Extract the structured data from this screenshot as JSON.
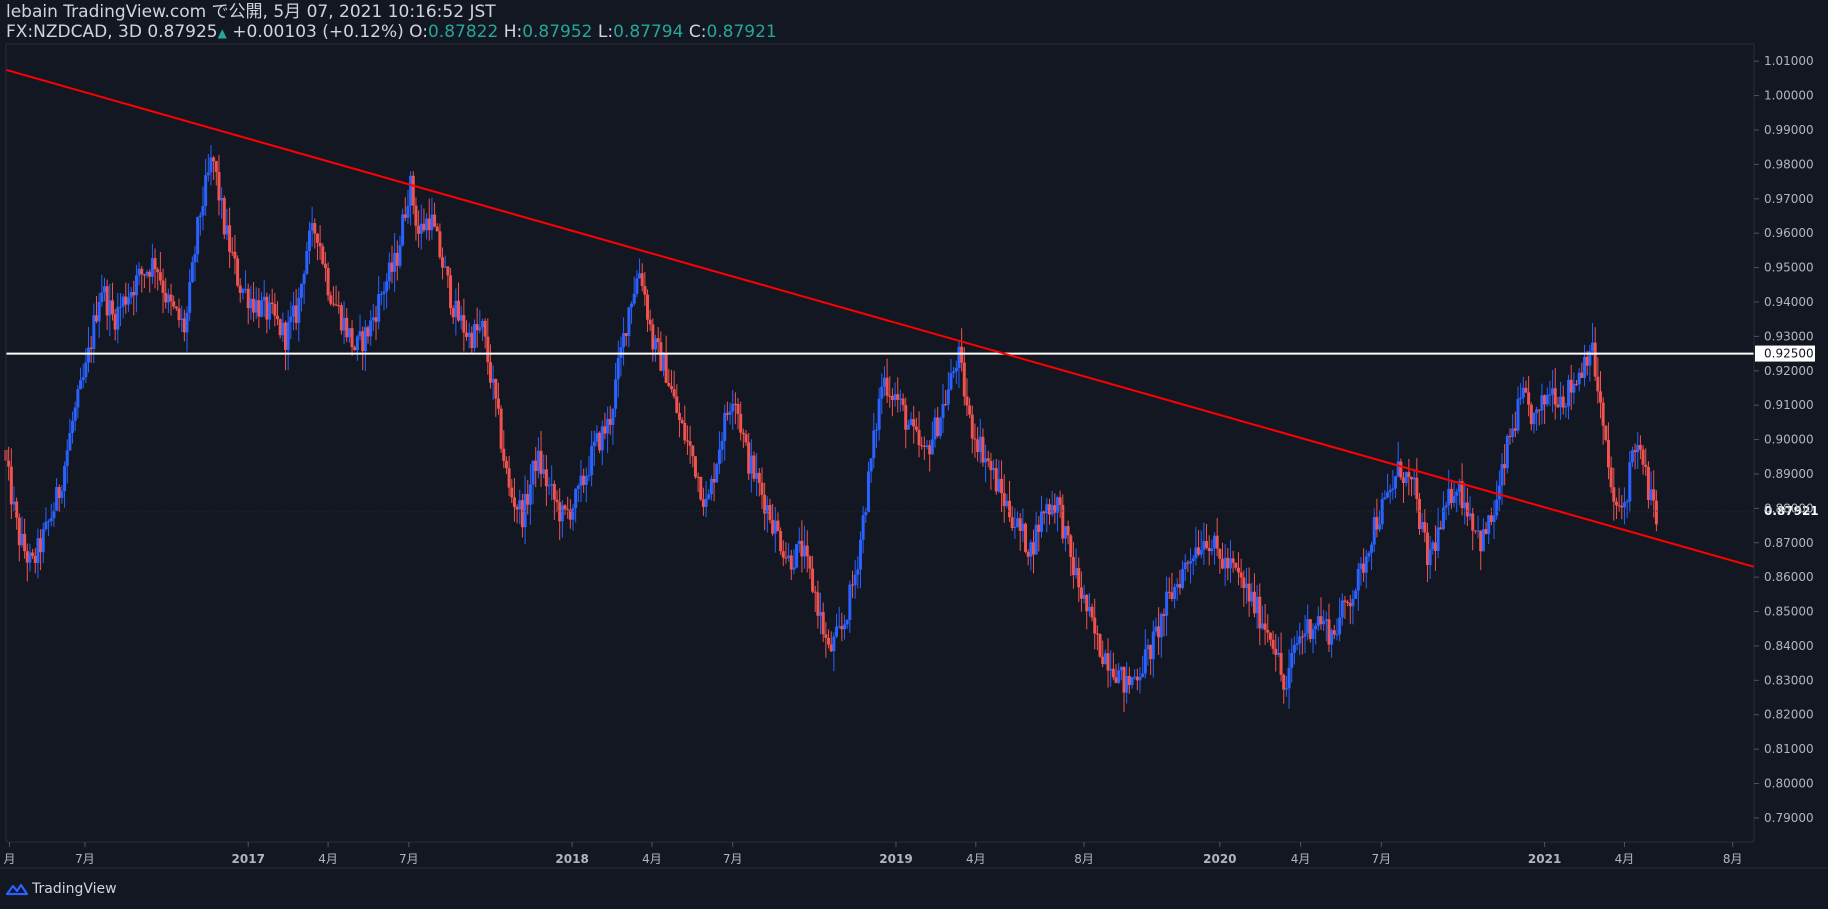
{
  "header": {
    "published": "lebain TradingView.com で公開, 5月 07, 2021 10:16:52 JST",
    "symbol": "FX:NZDCAD, 3D",
    "price": "0.87925",
    "change_arrow": "▲",
    "change": "+0.00103 (+0.12%)",
    "o_label": "O:",
    "o_value": "0.87822",
    "h_label": "H:",
    "h_value": "0.87952",
    "l_label": "L:",
    "l_value": "0.87794",
    "c_label": "C:",
    "c_value": "0.87921"
  },
  "brand": {
    "name": "TradingView",
    "icon": "tradingview-logo-icon"
  },
  "colors": {
    "background": "#131722",
    "up": "#2962ff",
    "down": "#ef5350",
    "trendline": "#ff0000",
    "level_line": "#ffffff",
    "axis_text": "#b2b5be",
    "grid_line": "#2a2e39"
  },
  "chart_data": {
    "type": "candlestick",
    "symbol": "FX:NZDCAD",
    "interval": "3D",
    "ylim": [
      0.783,
      1.015
    ],
    "y_ticks": [
      "0.79000",
      "0.80000",
      "0.81000",
      "0.82000",
      "0.83000",
      "0.84000",
      "0.85000",
      "0.86000",
      "0.87000",
      "0.88000",
      "0.89000",
      "0.90000",
      "0.91000",
      "0.92000",
      "0.93000",
      "0.94000",
      "0.95000",
      "0.96000",
      "0.97000",
      "0.98000",
      "0.99000",
      "1.00000",
      "1.01000"
    ],
    "y_tick_values": [
      0.79,
      0.8,
      0.81,
      0.82,
      0.83,
      0.84,
      0.85,
      0.86,
      0.87,
      0.88,
      0.89,
      0.9,
      0.91,
      0.92,
      0.93,
      0.94,
      0.95,
      0.96,
      0.97,
      0.98,
      0.99,
      1.0,
      1.01
    ],
    "x_range": [
      "2016-04-03",
      "2021-08-25"
    ],
    "x_ticks": [
      {
        "label": "月",
        "date": "2016-04-07",
        "bold": false
      },
      {
        "label": "7月",
        "date": "2016-07-01",
        "bold": false
      },
      {
        "label": "2017",
        "date": "2017-01-01",
        "bold": true
      },
      {
        "label": "4月",
        "date": "2017-04-01",
        "bold": false
      },
      {
        "label": "7月",
        "date": "2017-07-01",
        "bold": false
      },
      {
        "label": "2018",
        "date": "2018-01-01",
        "bold": true
      },
      {
        "label": "4月",
        "date": "2018-04-01",
        "bold": false
      },
      {
        "label": "7月",
        "date": "2018-07-01",
        "bold": false
      },
      {
        "label": "2019",
        "date": "2019-01-01",
        "bold": true
      },
      {
        "label": "4月",
        "date": "2019-04-01",
        "bold": false
      },
      {
        "label": "8月",
        "date": "2019-08-01",
        "bold": false
      },
      {
        "label": "2020",
        "date": "2020-01-01",
        "bold": true
      },
      {
        "label": "4月",
        "date": "2020-04-01",
        "bold": false
      },
      {
        "label": "7月",
        "date": "2020-07-01",
        "bold": false
      },
      {
        "label": "2021",
        "date": "2021-01-01",
        "bold": true
      },
      {
        "label": "4月",
        "date": "2021-04-01",
        "bold": false
      },
      {
        "label": "8月",
        "date": "2021-08-01",
        "bold": false
      }
    ],
    "horizontal_level": {
      "value": 0.925,
      "label": "0.92500"
    },
    "last_price": {
      "value": 0.87921,
      "label": "0.87921"
    },
    "trendline": {
      "start": {
        "date": "2016-04-03",
        "price": 1.0075
      },
      "end": {
        "date": "2021-08-25",
        "price": 0.863
      }
    },
    "close_path": [
      [
        "2016-04-03",
        0.897
      ],
      [
        "2016-04-20",
        0.872
      ],
      [
        "2016-05-05",
        0.863
      ],
      [
        "2016-05-22",
        0.874
      ],
      [
        "2016-06-05",
        0.885
      ],
      [
        "2016-06-20",
        0.905
      ],
      [
        "2016-07-05",
        0.92
      ],
      [
        "2016-07-22",
        0.945
      ],
      [
        "2016-08-05",
        0.935
      ],
      [
        "2016-08-20",
        0.942
      ],
      [
        "2016-09-05",
        0.948
      ],
      [
        "2016-09-22",
        0.952
      ],
      [
        "2016-10-05",
        0.94
      ],
      [
        "2016-10-25",
        0.932
      ],
      [
        "2016-11-10",
        0.965
      ],
      [
        "2016-11-25",
        0.982
      ],
      [
        "2016-12-08",
        0.962
      ],
      [
        "2016-12-25",
        0.945
      ],
      [
        "2017-01-10",
        0.94
      ],
      [
        "2017-01-30",
        0.936
      ],
      [
        "2017-02-15",
        0.93
      ],
      [
        "2017-03-01",
        0.938
      ],
      [
        "2017-03-10",
        0.955
      ],
      [
        "2017-03-22",
        0.962
      ],
      [
        "2017-04-05",
        0.944
      ],
      [
        "2017-04-20",
        0.935
      ],
      [
        "2017-05-05",
        0.926
      ],
      [
        "2017-05-20",
        0.932
      ],
      [
        "2017-06-05",
        0.944
      ],
      [
        "2017-06-20",
        0.952
      ],
      [
        "2017-07-05",
        0.975
      ],
      [
        "2017-07-15",
        0.96
      ],
      [
        "2017-07-28",
        0.965
      ],
      [
        "2017-08-10",
        0.952
      ],
      [
        "2017-08-25",
        0.937
      ],
      [
        "2017-09-10",
        0.93
      ],
      [
        "2017-09-25",
        0.932
      ],
      [
        "2017-10-10",
        0.91
      ],
      [
        "2017-10-25",
        0.885
      ],
      [
        "2017-11-10",
        0.878
      ],
      [
        "2017-11-25",
        0.895
      ],
      [
        "2017-12-10",
        0.885
      ],
      [
        "2017-12-25",
        0.877
      ],
      [
        "2018-01-10",
        0.883
      ],
      [
        "2018-01-30",
        0.898
      ],
      [
        "2018-02-15",
        0.905
      ],
      [
        "2018-02-28",
        0.925
      ],
      [
        "2018-03-10",
        0.94
      ],
      [
        "2018-03-22",
        0.95
      ],
      [
        "2018-04-05",
        0.928
      ],
      [
        "2018-04-20",
        0.92
      ],
      [
        "2018-05-05",
        0.905
      ],
      [
        "2018-05-20",
        0.895
      ],
      [
        "2018-06-05",
        0.88
      ],
      [
        "2018-06-20",
        0.9
      ],
      [
        "2018-07-05",
        0.915
      ],
      [
        "2018-07-20",
        0.895
      ],
      [
        "2018-08-05",
        0.885
      ],
      [
        "2018-08-20",
        0.875
      ],
      [
        "2018-09-05",
        0.865
      ],
      [
        "2018-09-20",
        0.868
      ],
      [
        "2018-10-05",
        0.855
      ],
      [
        "2018-10-20",
        0.838
      ],
      [
        "2018-11-05",
        0.845
      ],
      [
        "2018-11-20",
        0.862
      ],
      [
        "2018-12-05",
        0.89
      ],
      [
        "2018-12-20",
        0.918
      ],
      [
        "2019-01-05",
        0.912
      ],
      [
        "2019-01-20",
        0.903
      ],
      [
        "2019-02-05",
        0.895
      ],
      [
        "2019-02-20",
        0.905
      ],
      [
        "2019-03-05",
        0.915
      ],
      [
        "2019-03-15",
        0.925
      ],
      [
        "2019-03-28",
        0.905
      ],
      [
        "2019-04-15",
        0.895
      ],
      [
        "2019-05-01",
        0.885
      ],
      [
        "2019-05-20",
        0.875
      ],
      [
        "2019-06-05",
        0.868
      ],
      [
        "2019-06-20",
        0.88
      ],
      [
        "2019-07-05",
        0.882
      ],
      [
        "2019-07-20",
        0.865
      ],
      [
        "2019-08-05",
        0.852
      ],
      [
        "2019-08-20",
        0.84
      ],
      [
        "2019-09-05",
        0.835
      ],
      [
        "2019-09-20",
        0.828
      ],
      [
        "2019-10-05",
        0.833
      ],
      [
        "2019-10-20",
        0.84
      ],
      [
        "2019-11-05",
        0.852
      ],
      [
        "2019-11-20",
        0.86
      ],
      [
        "2019-12-05",
        0.868
      ],
      [
        "2019-12-20",
        0.872
      ],
      [
        "2020-01-05",
        0.865
      ],
      [
        "2020-01-20",
        0.862
      ],
      [
        "2020-02-05",
        0.855
      ],
      [
        "2020-02-20",
        0.848
      ],
      [
        "2020-03-05",
        0.842
      ],
      [
        "2020-03-18",
        0.825
      ],
      [
        "2020-03-28",
        0.84
      ],
      [
        "2020-04-10",
        0.845
      ],
      [
        "2020-04-25",
        0.848
      ],
      [
        "2020-05-10",
        0.843
      ],
      [
        "2020-05-25",
        0.852
      ],
      [
        "2020-06-10",
        0.86
      ],
      [
        "2020-06-25",
        0.875
      ],
      [
        "2020-07-10",
        0.882
      ],
      [
        "2020-07-25",
        0.892
      ],
      [
        "2020-08-10",
        0.885
      ],
      [
        "2020-08-25",
        0.865
      ],
      [
        "2020-09-10",
        0.875
      ],
      [
        "2020-09-25",
        0.888
      ],
      [
        "2020-10-10",
        0.88
      ],
      [
        "2020-10-25",
        0.87
      ],
      [
        "2020-11-10",
        0.88
      ],
      [
        "2020-11-25",
        0.9
      ],
      [
        "2020-12-10",
        0.912
      ],
      [
        "2020-12-25",
        0.905
      ],
      [
        "2021-01-10",
        0.915
      ],
      [
        "2021-01-25",
        0.912
      ],
      [
        "2021-02-10",
        0.918
      ],
      [
        "2021-02-25",
        0.928
      ],
      [
        "2021-03-05",
        0.915
      ],
      [
        "2021-03-15",
        0.895
      ],
      [
        "2021-03-25",
        0.878
      ],
      [
        "2021-04-05",
        0.882
      ],
      [
        "2021-04-15",
        0.9
      ],
      [
        "2021-04-25",
        0.892
      ],
      [
        "2021-05-07",
        0.87921
      ]
    ]
  }
}
